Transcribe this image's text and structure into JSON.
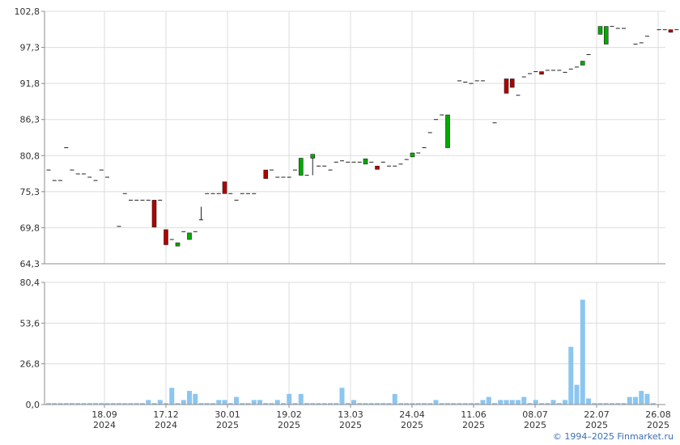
{
  "colors": {
    "grid": "#dcdcdc",
    "axis": "#8c8c8c",
    "up": "#00aa00",
    "down": "#b00000",
    "dash": "#222222",
    "volume": "#8cc6ef"
  },
  "credit": "© 1994–2025 Finmarket.ru",
  "chart_data": [
    {
      "type": "candlestick",
      "title": "",
      "ylim": [
        64.3,
        102.8
      ],
      "y_ticks": [
        "102,8",
        "97,3",
        "91,8",
        "86,3",
        "80,8",
        "75,3",
        "69,8",
        "64,3"
      ],
      "y_tick_values": [
        102.8,
        97.3,
        91.8,
        86.3,
        80.8,
        75.3,
        69.8,
        64.3
      ],
      "x_ticks": [
        {
          "date": "18.09",
          "year": "2024"
        },
        {
          "date": "17.12",
          "year": "2024"
        },
        {
          "date": "30.01",
          "year": "2025"
        },
        {
          "date": "19.02",
          "year": "2025"
        },
        {
          "date": "13.03",
          "year": "2025"
        },
        {
          "date": "24.04",
          "year": "2025"
        },
        {
          "date": "11.06",
          "year": "2025"
        },
        {
          "date": "08.07",
          "year": "2025"
        },
        {
          "date": "22.07",
          "year": "2025"
        },
        {
          "date": "26.08",
          "year": "2025"
        }
      ],
      "candles": [
        [
          78.6,
          78.6,
          78.6,
          78.6
        ],
        [
          77.0,
          77.0,
          77.0,
          77.0
        ],
        [
          77.0,
          77.0,
          77.0,
          77.0
        ],
        [
          82.0,
          82.0,
          82.0,
          82.0
        ],
        [
          78.6,
          78.6,
          78.6,
          78.6
        ],
        [
          78.0,
          78.0,
          78.0,
          78.0
        ],
        [
          78.0,
          78.0,
          78.0,
          78.0
        ],
        [
          77.5,
          77.5,
          77.5,
          77.5
        ],
        [
          77.0,
          77.0,
          77.0,
          77.0
        ],
        [
          78.6,
          78.6,
          78.6,
          78.6
        ],
        [
          77.5,
          77.5,
          77.5,
          77.5
        ],
        [
          null,
          null,
          null,
          null
        ],
        [
          70.0,
          70.0,
          70.0,
          70.0
        ],
        [
          75.0,
          75.0,
          75.0,
          75.0
        ],
        [
          74.0,
          74.0,
          74.0,
          74.0
        ],
        [
          74.0,
          74.0,
          74.0,
          74.0
        ],
        [
          74.0,
          74.0,
          74.0,
          74.0
        ],
        [
          74.0,
          74.0,
          74.0,
          74.0
        ],
        [
          74.0,
          74.0,
          69.9,
          69.9
        ],
        [
          74.0,
          74.0,
          74.0,
          74.0
        ],
        [
          69.5,
          69.5,
          67.2,
          67.2
        ],
        [
          68.0,
          68.0,
          68.0,
          68.0
        ],
        [
          67.0,
          67.5,
          67.0,
          67.5
        ],
        [
          69.2,
          69.2,
          69.2,
          69.2
        ],
        [
          68.0,
          69.0,
          68.0,
          69.0
        ],
        [
          69.2,
          69.2,
          69.2,
          69.2
        ],
        [
          71.0,
          73.0,
          71.0,
          71.0
        ],
        [
          75.0,
          75.0,
          75.0,
          75.0
        ],
        [
          75.0,
          75.0,
          75.0,
          75.0
        ],
        [
          75.0,
          75.0,
          75.0,
          75.0
        ],
        [
          76.8,
          76.8,
          75.0,
          75.0
        ],
        [
          75.0,
          75.0,
          75.0,
          75.0
        ],
        [
          74.0,
          74.0,
          74.0,
          74.0
        ],
        [
          75.0,
          75.0,
          75.0,
          75.0
        ],
        [
          75.0,
          75.0,
          75.0,
          75.0
        ],
        [
          75.0,
          75.0,
          75.0,
          75.0
        ],
        [
          null,
          null,
          null,
          null
        ],
        [
          78.6,
          78.6,
          77.3,
          77.3
        ],
        [
          78.6,
          78.6,
          78.6,
          78.6
        ],
        [
          77.5,
          77.5,
          77.5,
          77.5
        ],
        [
          77.5,
          77.5,
          77.5,
          77.5
        ],
        [
          77.5,
          77.5,
          77.5,
          77.5
        ],
        [
          78.6,
          78.6,
          78.6,
          78.6
        ],
        [
          77.8,
          80.4,
          77.8,
          80.4
        ],
        [
          77.8,
          77.8,
          77.8,
          77.8
        ],
        [
          80.4,
          81.0,
          77.8,
          81.0
        ],
        [
          79.2,
          79.2,
          79.2,
          79.2
        ],
        [
          79.2,
          79.2,
          79.2,
          79.2
        ],
        [
          78.6,
          78.6,
          78.6,
          78.6
        ],
        [
          79.8,
          79.8,
          79.8,
          79.8
        ],
        [
          80.0,
          80.0,
          80.0,
          80.0
        ],
        [
          79.8,
          79.8,
          79.8,
          79.8
        ],
        [
          79.8,
          79.8,
          79.8,
          79.8
        ],
        [
          79.8,
          79.8,
          79.8,
          79.8
        ],
        [
          79.5,
          80.3,
          79.5,
          80.3
        ],
        [
          79.8,
          79.8,
          79.8,
          79.8
        ],
        [
          79.2,
          79.2,
          78.7,
          78.7
        ],
        [
          79.8,
          79.8,
          79.8,
          79.8
        ],
        [
          79.2,
          79.2,
          79.2,
          79.2
        ],
        [
          79.2,
          79.2,
          79.2,
          79.2
        ],
        [
          79.5,
          79.5,
          79.5,
          79.5
        ],
        [
          80.2,
          80.2,
          80.2,
          80.2
        ],
        [
          80.6,
          81.2,
          80.6,
          81.2
        ],
        [
          81.2,
          81.2,
          81.2,
          81.2
        ],
        [
          82.0,
          82.0,
          82.0,
          82.0
        ],
        [
          84.3,
          84.3,
          84.3,
          84.3
        ],
        [
          86.3,
          86.3,
          86.3,
          86.3
        ],
        [
          87.0,
          87.0,
          87.0,
          87.0
        ],
        [
          82.0,
          87.0,
          82.0,
          87.0
        ],
        [
          null,
          null,
          null,
          null
        ],
        [
          92.2,
          92.2,
          92.2,
          92.2
        ],
        [
          92.0,
          92.0,
          92.0,
          92.0
        ],
        [
          91.8,
          91.8,
          91.8,
          91.8
        ],
        [
          92.2,
          92.2,
          92.2,
          92.2
        ],
        [
          92.2,
          92.2,
          92.2,
          92.2
        ],
        [
          null,
          null,
          null,
          null
        ],
        [
          85.8,
          85.8,
          85.8,
          85.8
        ],
        [
          null,
          null,
          null,
          null
        ],
        [
          92.5,
          92.5,
          90.3,
          90.3
        ],
        [
          92.5,
          92.5,
          91.2,
          91.2
        ],
        [
          90.0,
          90.0,
          90.0,
          90.0
        ],
        [
          92.8,
          92.8,
          92.8,
          92.8
        ],
        [
          93.3,
          93.3,
          93.3,
          93.3
        ],
        [
          93.6,
          93.6,
          93.6,
          93.6
        ],
        [
          93.6,
          93.6,
          93.2,
          93.2
        ],
        [
          93.8,
          93.8,
          93.8,
          93.8
        ],
        [
          93.8,
          93.8,
          93.8,
          93.8
        ],
        [
          93.8,
          93.8,
          93.8,
          93.8
        ],
        [
          93.5,
          93.5,
          93.5,
          93.5
        ],
        [
          94.0,
          94.0,
          94.0,
          94.0
        ],
        [
          94.3,
          94.3,
          94.3,
          94.3
        ],
        [
          94.6,
          95.2,
          94.6,
          95.2
        ],
        [
          96.2,
          96.2,
          96.2,
          96.2
        ],
        [
          null,
          null,
          null,
          null
        ],
        [
          99.3,
          100.5,
          99.3,
          100.5
        ],
        [
          97.8,
          100.5,
          97.8,
          100.5
        ],
        [
          100.5,
          100.5,
          100.5,
          100.5
        ],
        [
          100.2,
          100.2,
          100.2,
          100.2
        ],
        [
          100.2,
          100.2,
          100.2,
          100.2
        ],
        [
          null,
          null,
          null,
          null
        ],
        [
          97.8,
          97.8,
          97.8,
          97.8
        ],
        [
          98.0,
          98.0,
          98.0,
          98.0
        ],
        [
          99.0,
          99.0,
          99.0,
          99.0
        ],
        [
          null,
          null,
          null,
          null
        ],
        [
          100.0,
          100.0,
          100.0,
          100.0
        ],
        [
          100.0,
          100.0,
          100.0,
          100.0
        ],
        [
          100.0,
          100.0,
          99.6,
          99.6
        ],
        [
          100.0,
          100.0,
          100.0,
          100.0
        ],
        [
          100.0,
          100.0,
          100.0,
          100.0
        ],
        [
          100.2,
          100.2,
          100.2,
          100.2
        ],
        [
          100.2,
          100.2,
          100.2,
          100.2
        ],
        [
          100.2,
          100.2,
          100.2,
          100.2
        ]
      ]
    },
    {
      "type": "bar",
      "title": "",
      "ylim": [
        0,
        80.4
      ],
      "y_ticks": [
        "80,4",
        "53,6",
        "26,8",
        "0,0"
      ],
      "y_tick_values": [
        80.4,
        53.6,
        26.8,
        0
      ],
      "values": [
        1,
        1,
        1,
        1,
        1,
        1,
        1,
        1,
        1,
        1,
        1,
        1,
        1,
        1,
        1,
        1,
        1,
        3,
        1,
        3,
        1,
        11,
        1,
        3,
        9,
        7,
        1,
        1,
        1,
        3,
        3,
        1,
        5,
        1,
        1,
        3,
        3,
        1,
        1,
        3,
        1,
        7,
        1,
        7,
        1,
        1,
        1,
        1,
        1,
        1,
        11,
        1,
        3,
        1,
        1,
        1,
        1,
        1,
        1,
        7,
        1,
        1,
        1,
        1,
        1,
        1,
        3,
        1,
        1,
        1,
        1,
        1,
        1,
        1,
        3,
        5,
        1,
        3,
        3,
        3,
        3,
        5,
        1,
        3,
        1,
        1,
        3,
        1,
        3,
        38,
        13,
        69,
        4,
        1,
        1,
        1,
        1,
        1,
        1,
        5,
        5,
        9,
        7,
        1
      ]
    }
  ]
}
